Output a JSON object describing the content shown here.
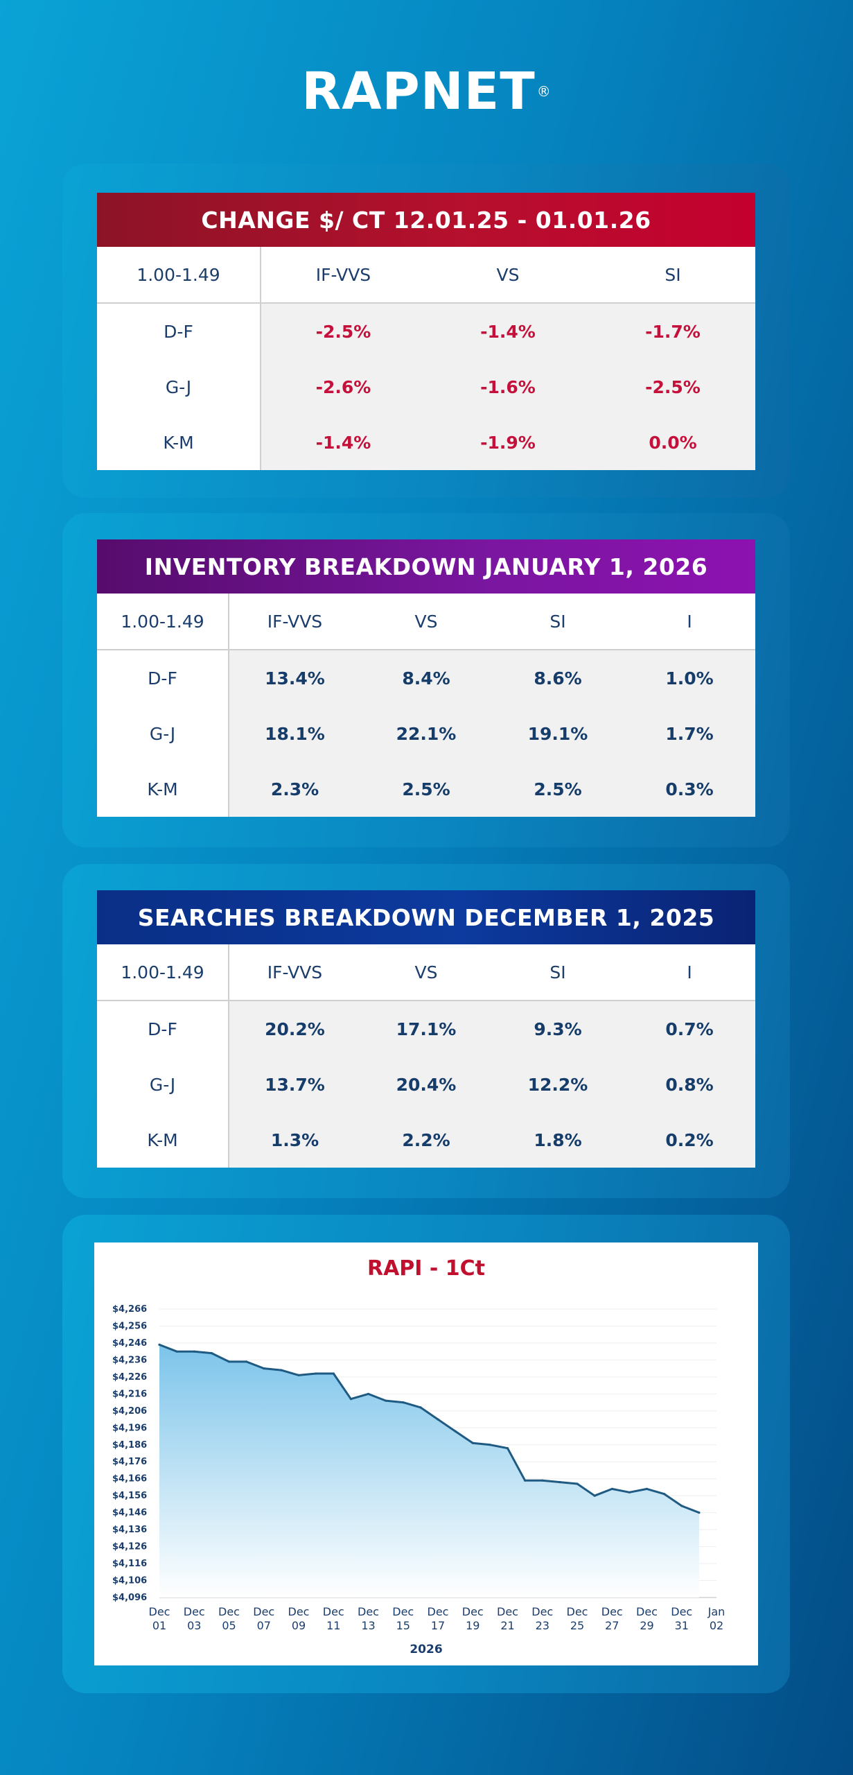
{
  "logo": {
    "text": "RAPNET",
    "mark": "®"
  },
  "colors": {
    "change_header": "#b5102d",
    "inventory_header": "#7a16a0",
    "searches_header": "#0c3a9e",
    "negative_value": "#c4103a",
    "text_navy": "#1b3d6b",
    "chart_line": "#1e5a82",
    "chart_fill": "#7cc4ea"
  },
  "change_table": {
    "title": "CHANGE $/ CT 12.01.25 - 01.01.26",
    "corner": "1.00-1.49",
    "columns": [
      "IF-VVS",
      "VS",
      "SI"
    ],
    "rows": [
      {
        "label": "D-F",
        "values": [
          "-2.5%",
          "-1.4%",
          "-1.7%"
        ]
      },
      {
        "label": "G-J",
        "values": [
          "-2.6%",
          "-1.6%",
          "-2.5%"
        ]
      },
      {
        "label": "K-M",
        "values": [
          "-1.4%",
          "-1.9%",
          "0.0%"
        ]
      }
    ]
  },
  "inventory_table": {
    "title": "INVENTORY BREAKDOWN JANUARY 1, 2026",
    "corner": "1.00-1.49",
    "columns": [
      "IF-VVS",
      "VS",
      "SI",
      "I"
    ],
    "rows": [
      {
        "label": "D-F",
        "values": [
          "13.4%",
          "8.4%",
          "8.6%",
          "1.0%"
        ]
      },
      {
        "label": "G-J",
        "values": [
          "18.1%",
          "22.1%",
          "19.1%",
          "1.7%"
        ]
      },
      {
        "label": "K-M",
        "values": [
          "2.3%",
          "2.5%",
          "2.5%",
          "0.3%"
        ]
      }
    ]
  },
  "searches_table": {
    "title": "SEARCHES BREAKDOWN DECEMBER 1, 2025",
    "corner": "1.00-1.49",
    "columns": [
      "IF-VVS",
      "VS",
      "SI",
      "I"
    ],
    "rows": [
      {
        "label": "D-F",
        "values": [
          "20.2%",
          "17.1%",
          "9.3%",
          "0.7%"
        ]
      },
      {
        "label": "G-J",
        "values": [
          "13.7%",
          "20.4%",
          "12.2%",
          "0.8%"
        ]
      },
      {
        "label": "K-M",
        "values": [
          "1.3%",
          "2.2%",
          "1.8%",
          "0.2%"
        ]
      }
    ]
  },
  "chart_data": {
    "type": "area",
    "title": "RAPI - 1Ct",
    "xlabel": "2026",
    "ylabel": "",
    "ylim": [
      4096,
      4266
    ],
    "xlim": [
      "2025-12-01",
      "2026-01-02"
    ],
    "grid": true,
    "legend": "none",
    "y_ticks": [
      "$4,266",
      "$4,256",
      "$4,246",
      "$4,236",
      "$4,226",
      "$4,216",
      "$4,206",
      "$4,196",
      "$4,186",
      "$4,176",
      "$4,166",
      "$4,156",
      "$4,146",
      "$4,136",
      "$4,126",
      "$4,116",
      "$4,106",
      "$4,096"
    ],
    "x_ticks": [
      {
        "date": "2025-12-01",
        "top": "Dec",
        "bottom": "01"
      },
      {
        "date": "2025-12-03",
        "top": "Dec",
        "bottom": "03"
      },
      {
        "date": "2025-12-05",
        "top": "Dec",
        "bottom": "05"
      },
      {
        "date": "2025-12-07",
        "top": "Dec",
        "bottom": "07"
      },
      {
        "date": "2025-12-09",
        "top": "Dec",
        "bottom": "09"
      },
      {
        "date": "2025-12-11",
        "top": "Dec",
        "bottom": "11"
      },
      {
        "date": "2025-12-13",
        "top": "Dec",
        "bottom": "13"
      },
      {
        "date": "2025-12-15",
        "top": "Dec",
        "bottom": "15"
      },
      {
        "date": "2025-12-17",
        "top": "Dec",
        "bottom": "17"
      },
      {
        "date": "2025-12-19",
        "top": "Dec",
        "bottom": "19"
      },
      {
        "date": "2025-12-21",
        "top": "Dec",
        "bottom": "21"
      },
      {
        "date": "2025-12-23",
        "top": "Dec",
        "bottom": "23"
      },
      {
        "date": "2025-12-25",
        "top": "Dec",
        "bottom": "25"
      },
      {
        "date": "2025-12-27",
        "top": "Dec",
        "bottom": "27"
      },
      {
        "date": "2025-12-29",
        "top": "Dec",
        "bottom": "29"
      },
      {
        "date": "2025-12-31",
        "top": "Dec",
        "bottom": "31"
      },
      {
        "date": "2026-01-02",
        "top": "Jan",
        "bottom": "02"
      }
    ],
    "series": [
      {
        "x": [
          "2025-12-01",
          "2025-12-02",
          "2025-12-03",
          "2025-12-04",
          "2025-12-05",
          "2025-12-06",
          "2025-12-07",
          "2025-12-08",
          "2025-12-09",
          "2025-12-10",
          "2025-12-11",
          "2025-12-12",
          "2025-12-13",
          "2025-12-14",
          "2025-12-15",
          "2025-12-16",
          "2025-12-17",
          "2025-12-18",
          "2025-12-19",
          "2025-12-20",
          "2025-12-21",
          "2025-12-22",
          "2025-12-23",
          "2025-12-24",
          "2025-12-25",
          "2025-12-26",
          "2025-12-27",
          "2025-12-28",
          "2025-12-29",
          "2025-12-30",
          "2025-12-31",
          "2026-01-01"
        ],
        "values": [
          4245,
          4241,
          4241,
          4240,
          4235,
          4235,
          4231,
          4230,
          4227,
          4228,
          4228,
          4213,
          4216,
          4212,
          4211,
          4208,
          4201,
          4194,
          4187,
          4186,
          4184,
          4165,
          4165,
          4164,
          4163,
          4156,
          4160,
          4158,
          4160,
          4157,
          4150,
          4146
        ]
      }
    ]
  }
}
